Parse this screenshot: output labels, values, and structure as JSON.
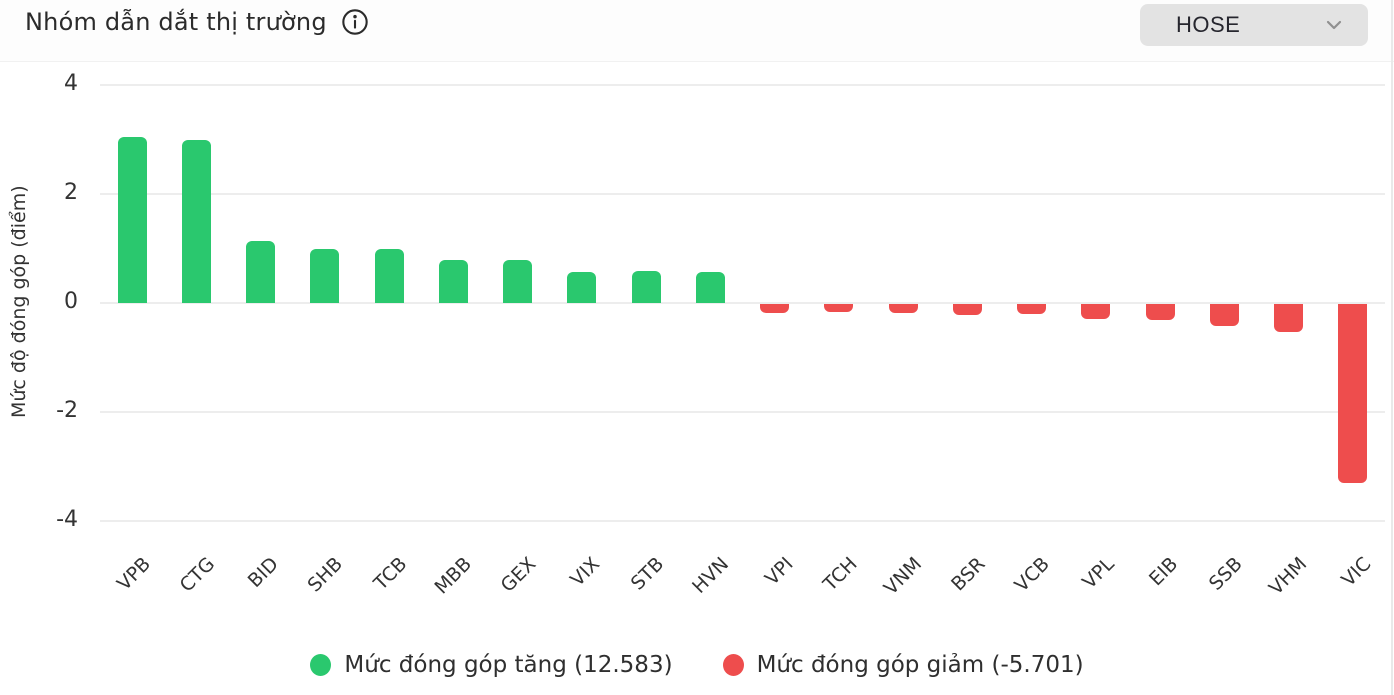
{
  "header": {
    "title": "Nhóm dẫn dắt thị trường",
    "info_icon": "info-circle-icon",
    "exchange_selector": {
      "value": "HOSE",
      "chevron_icon": "chevron-down-icon"
    }
  },
  "chart_data": {
    "type": "bar",
    "categories": [
      "VPB",
      "CTG",
      "BID",
      "SHB",
      "TCB",
      "MBB",
      "GEX",
      "VIX",
      "STB",
      "HVN",
      "VPI",
      "TCH",
      "VNM",
      "BSR",
      "VCB",
      "VPL",
      "EIB",
      "SSB",
      "VHM",
      "VIC"
    ],
    "values": [
      3.05,
      3.0,
      1.13,
      0.99,
      1.0,
      0.78,
      0.79,
      0.57,
      0.58,
      0.57,
      -0.17,
      -0.15,
      -0.17,
      -0.21,
      -0.19,
      -0.27,
      -0.29,
      -0.4,
      -0.52,
      -3.28
    ],
    "title": "",
    "xlabel": "",
    "ylabel": "Mức độ đóng góp (điểm)",
    "yticks": [
      4,
      2,
      0,
      -2,
      -4
    ],
    "ylim": [
      -4.4,
      4.4
    ],
    "grid": true,
    "positive_color": "#2AC86E",
    "negative_color": "#EE4D4D",
    "legend_position": "bottom",
    "total_increase": "12.583",
    "total_decrease": "-5.701",
    "legend": [
      {
        "label": "Mức đóng góp tăng (12.583)",
        "color": "#2AC86E"
      },
      {
        "label": "Mức đóng góp giảm (-5.701)",
        "color": "#EE4D4D"
      }
    ]
  }
}
